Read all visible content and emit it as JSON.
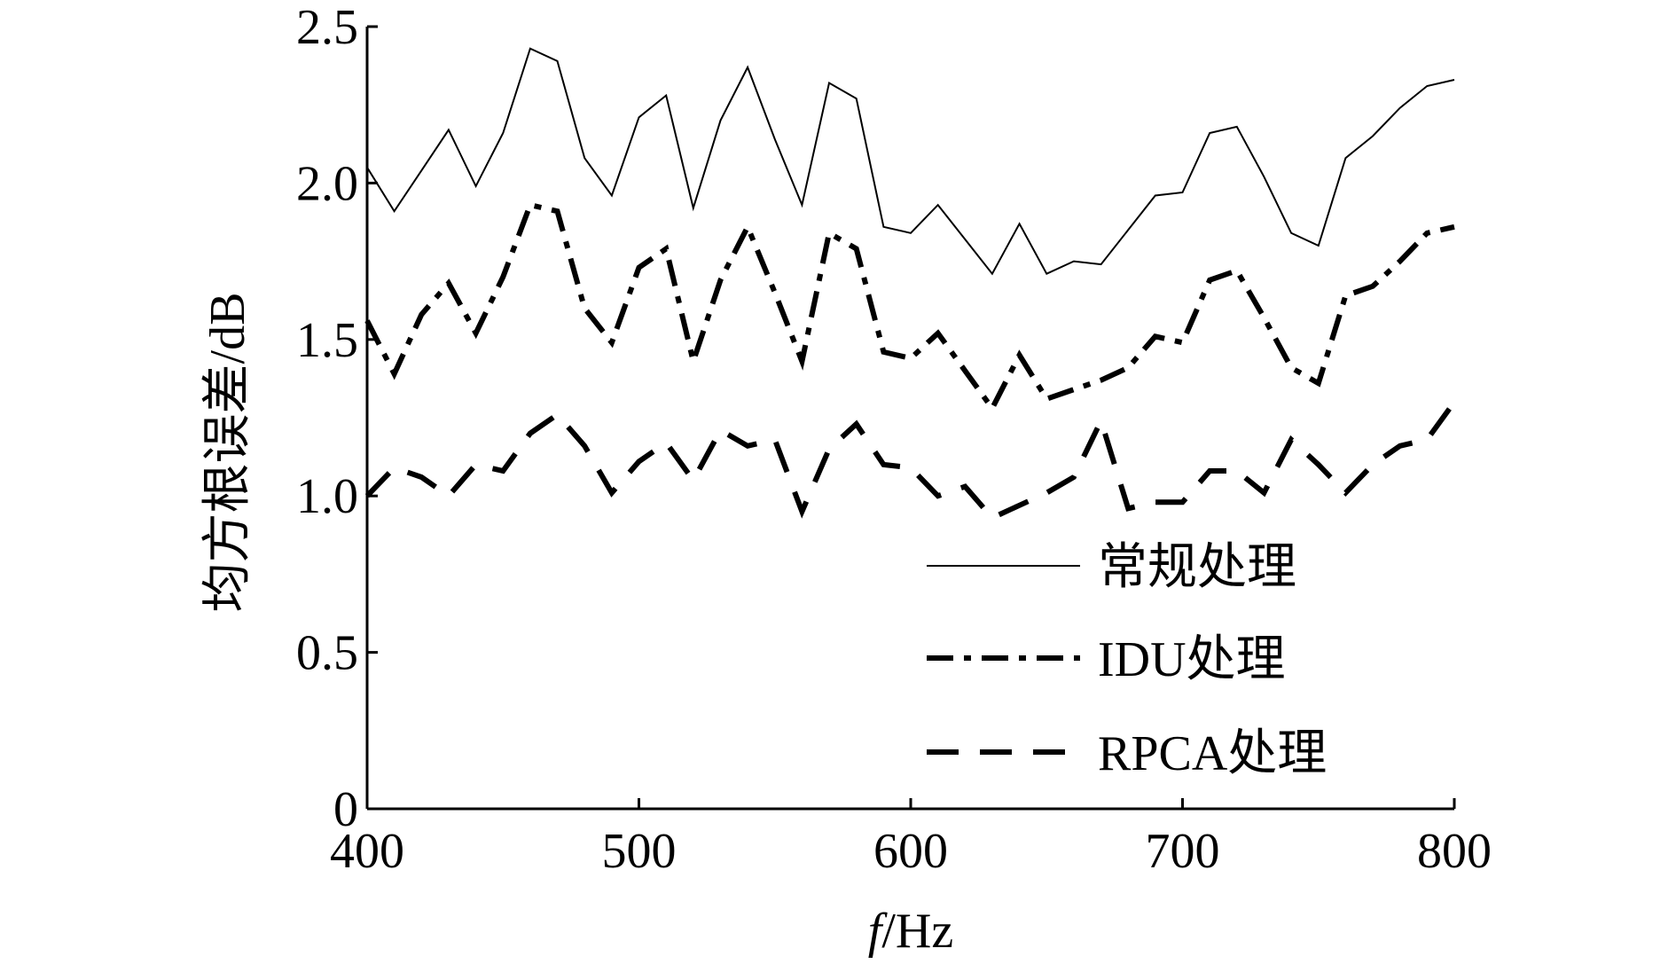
{
  "chart_data": {
    "type": "line",
    "title": "",
    "xlabel_italic": "f",
    "xlabel_rest": "/Hz",
    "ylabel": "均方根误差/dB",
    "xlim": [
      400,
      800
    ],
    "ylim": [
      0,
      2.5
    ],
    "x_ticks": [
      400,
      500,
      600,
      700,
      800
    ],
    "x_tick_labels": [
      "400",
      "500",
      "600",
      "700",
      "800"
    ],
    "y_ticks": [
      0,
      0.5,
      1.0,
      1.5,
      2.0,
      2.5
    ],
    "y_tick_labels": [
      "0",
      "0.5",
      "1.0",
      "1.5",
      "2.0",
      "2.5"
    ],
    "grid": false,
    "legend_position": "lower-right",
    "x": [
      400,
      410,
      420,
      430,
      440,
      450,
      460,
      470,
      480,
      490,
      500,
      510,
      520,
      530,
      540,
      550,
      560,
      570,
      580,
      590,
      600,
      610,
      620,
      630,
      640,
      650,
      660,
      670,
      680,
      690,
      700,
      710,
      720,
      730,
      740,
      750,
      760,
      770,
      780,
      790,
      800
    ],
    "series": [
      {
        "name": "常规处理",
        "style": "solid",
        "values": [
          2.05,
          1.91,
          2.04,
          2.17,
          1.99,
          2.16,
          2.43,
          2.39,
          2.08,
          1.96,
          2.21,
          2.28,
          1.92,
          2.2,
          2.37,
          2.14,
          1.93,
          2.32,
          2.27,
          1.86,
          1.84,
          1.93,
          1.82,
          1.71,
          1.87,
          1.71,
          1.75,
          1.74,
          1.85,
          1.96,
          1.97,
          2.16,
          2.18,
          2.02,
          1.84,
          1.8,
          2.08,
          2.15,
          2.24,
          2.31,
          2.33
        ]
      },
      {
        "name": "IDU处理",
        "style": "dashdot",
        "values": [
          1.56,
          1.39,
          1.58,
          1.68,
          1.52,
          1.7,
          1.93,
          1.91,
          1.6,
          1.49,
          1.73,
          1.79,
          1.43,
          1.69,
          1.86,
          1.65,
          1.43,
          1.84,
          1.79,
          1.46,
          1.44,
          1.52,
          1.4,
          1.28,
          1.45,
          1.31,
          1.34,
          1.37,
          1.41,
          1.51,
          1.49,
          1.69,
          1.72,
          1.57,
          1.41,
          1.36,
          1.64,
          1.67,
          1.75,
          1.84,
          1.86
        ]
      },
      {
        "name": "RPCA处理",
        "style": "dashed",
        "values": [
          1.0,
          1.09,
          1.06,
          1.0,
          1.1,
          1.08,
          1.2,
          1.26,
          1.16,
          1.01,
          1.11,
          1.17,
          1.05,
          1.21,
          1.16,
          1.18,
          0.95,
          1.15,
          1.23,
          1.1,
          1.09,
          1.0,
          1.03,
          0.93,
          0.97,
          1.01,
          1.06,
          1.24,
          0.96,
          0.98,
          0.98,
          1.08,
          1.08,
          1.01,
          1.18,
          1.1,
          1.01,
          1.1,
          1.16,
          1.18,
          1.3
        ]
      }
    ]
  }
}
